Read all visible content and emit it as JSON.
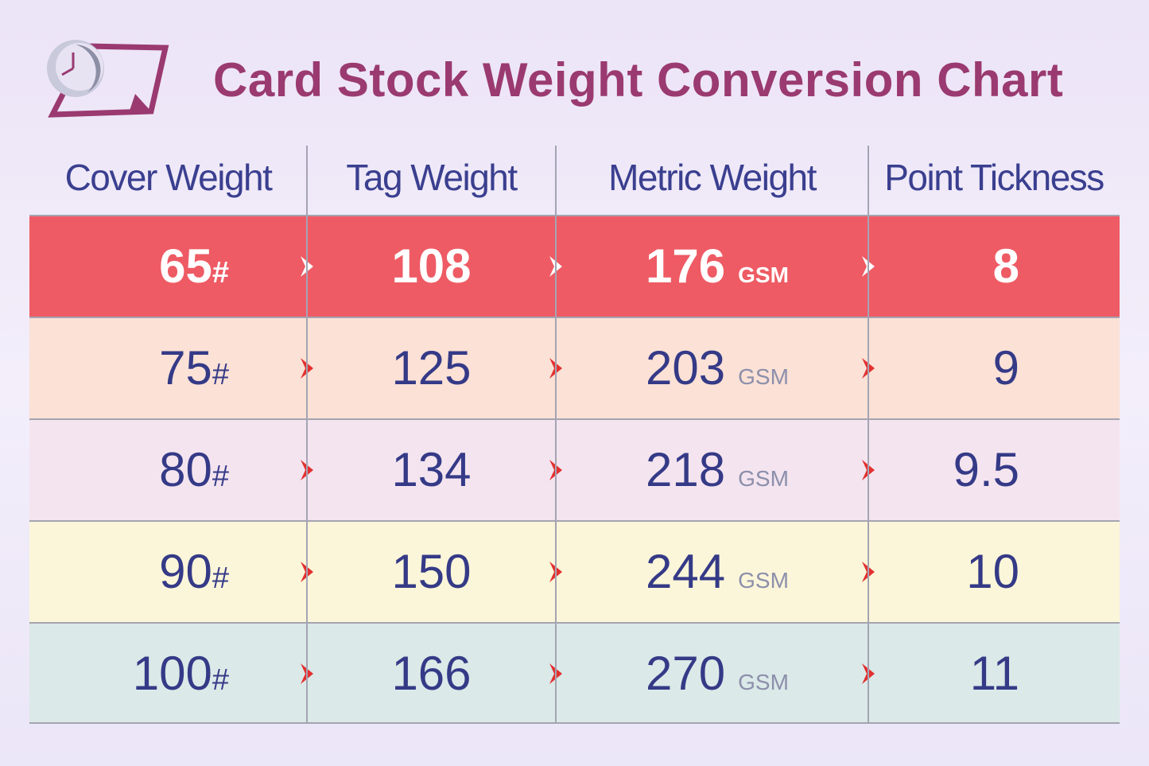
{
  "title": "Card Stock Weight Conversion Chart",
  "table": {
    "headers": [
      "Cover Weight",
      "Tag Weight",
      "Metric Weight",
      "Point Tickness"
    ],
    "rows": [
      {
        "cover": "65",
        "cover_unit": "#",
        "tag": "108",
        "metric": "176",
        "metric_unit": "GSM",
        "point": "8"
      },
      {
        "cover": "75",
        "cover_unit": "#",
        "tag": "125",
        "metric": "203",
        "metric_unit": "GSM",
        "point": "9"
      },
      {
        "cover": "80",
        "cover_unit": "#",
        "tag": "134",
        "metric": "218",
        "metric_unit": "GSM",
        "point": "9.5"
      },
      {
        "cover": "90",
        "cover_unit": "#",
        "tag": "150",
        "metric": "244",
        "metric_unit": "GSM",
        "point": "10"
      },
      {
        "cover": "100",
        "cover_unit": "#",
        "tag": "166",
        "metric": "270",
        "metric_unit": "GSM",
        "point": "11"
      }
    ]
  }
}
